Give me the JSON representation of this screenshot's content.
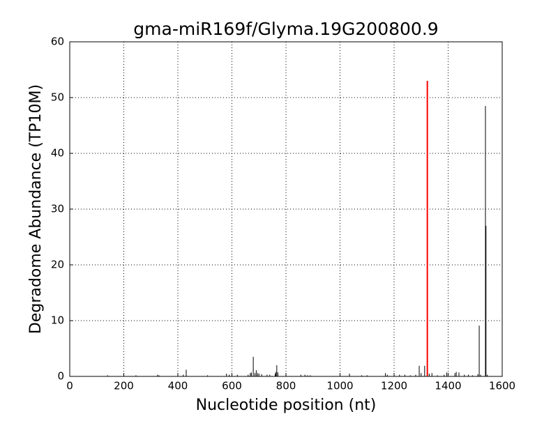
{
  "chart_data": {
    "type": "stem",
    "title": "gma-miR169f/Glyma.19G200800.9",
    "x_label": "Nucleotide position (nt)",
    "y_label": "Degradome Abundance (TP10M)",
    "xlim": [
      0,
      1600
    ],
    "xticks": [
      0,
      200,
      400,
      600,
      800,
      1000,
      1200,
      1400,
      1600
    ],
    "ylim": [
      0,
      60
    ],
    "yticks": [
      0,
      10,
      20,
      30,
      40,
      50,
      60
    ],
    "grid": true,
    "series": [
      {
        "color": "#000000",
        "x": [
          140,
          200,
          245,
          325,
          330,
          420,
          431,
          510,
          580,
          590,
          600,
          620,
          660,
          668,
          672,
          679,
          685,
          690,
          695,
          700,
          710,
          730,
          740,
          760,
          763,
          766,
          770,
          800,
          855,
          870,
          880,
          890,
          1000,
          1035,
          1080,
          1100,
          1168,
          1175,
          1220,
          1240,
          1260,
          1280,
          1293,
          1300,
          1313,
          1330,
          1340,
          1360,
          1385,
          1395,
          1400,
          1425,
          1430,
          1440,
          1460,
          1475,
          1490,
          1510,
          1515,
          1520,
          1538,
          1540,
          1545
        ],
        "values": [
          0.2,
          0.2,
          0.2,
          0.3,
          0.2,
          0.3,
          1.2,
          0.2,
          0.5,
          0.3,
          0.4,
          0.3,
          0.3,
          0.6,
          0.7,
          3.5,
          0.6,
          1.1,
          0.6,
          0.5,
          0.4,
          0.3,
          0.3,
          0.5,
          0.8,
          2,
          0.7,
          0.2,
          0.3,
          0.3,
          0.2,
          0.2,
          0.3,
          0.5,
          0.2,
          0.2,
          0.6,
          0.3,
          0.3,
          0.3,
          0.2,
          0.3,
          1.9,
          0.6,
          1.9,
          0.5,
          0.6,
          0.2,
          0.3,
          0.7,
          0.5,
          0.6,
          0.8,
          0.7,
          0.3,
          0.3,
          0.2,
          0.4,
          9.1,
          0.3,
          48.5,
          27,
          0.3
        ]
      },
      {
        "color": "#ff0000",
        "x": [
          1323
        ],
        "values": [
          53
        ]
      }
    ]
  }
}
